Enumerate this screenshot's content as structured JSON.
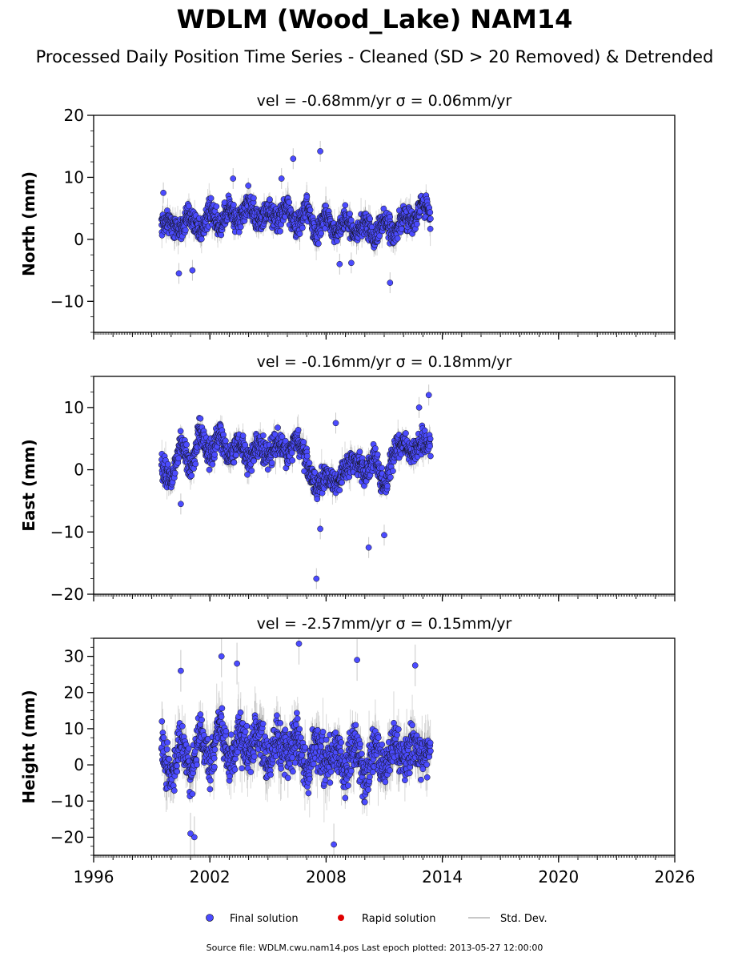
{
  "title": "WDLM (Wood_Lake) NAM14",
  "subtitle": "Processed Daily Position Time Series - Cleaned (SD > 20 Removed) & Detrended",
  "legend": {
    "final": "Final solution",
    "rapid": "Rapid solution",
    "std": "Std. Dev."
  },
  "footer": "Source file: WDLM.cwu.nam14.pos  Last epoch plotted: 2013-05-27 12:00:00",
  "colors": {
    "final": "#4b4bff",
    "rapid": "#e00000",
    "std": "#c8c8c8"
  },
  "chart_data": [
    {
      "type": "scatter",
      "title": "vel = -0.68mm/yr   σ = 0.06mm/yr",
      "ylabel": "North (mm)",
      "xlabel": "",
      "xlim": [
        1996,
        2026
      ],
      "ylim": [
        -15,
        20
      ],
      "xticks": [
        1996,
        2002,
        2008,
        2014,
        2020,
        2026
      ],
      "yticks": [
        -10,
        0,
        10,
        20
      ],
      "series": [
        {
          "name": "Final solution",
          "x": [
            1999.5,
            2000.0,
            2000.5,
            2001.0,
            2001.5,
            2002.0,
            2002.5,
            2003.0,
            2003.5,
            2004.0,
            2004.5,
            2005.0,
            2005.5,
            2006.0,
            2006.5,
            2007.0,
            2007.5,
            2008.0,
            2008.5,
            2009.0,
            2009.5,
            2010.0,
            2010.5,
            2011.0,
            2011.5,
            2012.0,
            2012.5,
            2013.0,
            2013.4
          ],
          "y": [
            2.5,
            3.0,
            1.5,
            4.0,
            1.0,
            4.5,
            2.0,
            5.0,
            2.5,
            6.5,
            2.5,
            5.0,
            3.0,
            5.5,
            1.5,
            5.5,
            0.5,
            4.0,
            1.0,
            3.5,
            0.5,
            3.0,
            0.0,
            3.5,
            0.5,
            4.0,
            2.5,
            6.0,
            3.5
          ]
        }
      ],
      "outliers": {
        "x": [
          1999.6,
          2000.4,
          2001.1,
          2003.2,
          2005.7,
          2006.3,
          2007.7,
          2008.7,
          2009.3,
          2011.3
        ],
        "y": [
          7.5,
          -5.5,
          -5.0,
          9.8,
          9.8,
          13.0,
          14.2,
          -4.0,
          -3.8,
          -7.0
        ]
      }
    },
    {
      "type": "scatter",
      "title": "vel = -0.16mm/yr   σ = 0.18mm/yr",
      "ylabel": "East (mm)",
      "xlabel": "",
      "xlim": [
        1996,
        2026
      ],
      "ylim": [
        -20,
        15
      ],
      "xticks": [
        1996,
        2002,
        2008,
        2014,
        2020,
        2026
      ],
      "yticks": [
        -20,
        -10,
        0,
        10
      ],
      "series": [
        {
          "name": "Final solution",
          "x": [
            1999.5,
            2000.0,
            2000.5,
            2001.0,
            2001.5,
            2002.0,
            2002.5,
            2003.0,
            2003.5,
            2004.0,
            2004.5,
            2005.0,
            2005.5,
            2006.0,
            2006.5,
            2007.0,
            2007.5,
            2008.0,
            2008.5,
            2009.0,
            2009.5,
            2010.0,
            2010.5,
            2011.0,
            2011.5,
            2012.0,
            2012.5,
            2013.0,
            2013.4
          ],
          "y": [
            1.0,
            -2.0,
            4.5,
            0.0,
            6.5,
            2.0,
            6.0,
            1.5,
            4.5,
            1.5,
            4.5,
            2.0,
            4.5,
            2.5,
            5.0,
            1.0,
            -3.0,
            -1.0,
            -2.5,
            0.5,
            1.5,
            -0.5,
            2.0,
            -3.0,
            3.0,
            4.0,
            2.5,
            5.0,
            3.5
          ]
        }
      ],
      "outliers": {
        "x": [
          2000.5,
          2007.5,
          2007.7,
          2008.5,
          2010.2,
          2011.0,
          2012.8,
          2013.3
        ],
        "y": [
          -5.5,
          -17.5,
          -9.5,
          7.5,
          -12.5,
          -10.5,
          10.0,
          12.0
        ]
      }
    },
    {
      "type": "scatter",
      "title": "vel = -2.57mm/yr   σ = 0.15mm/yr",
      "ylabel": "Height (mm)",
      "xlabel": "",
      "xlim": [
        1996,
        2026
      ],
      "ylim": [
        -25,
        35
      ],
      "xticks": [
        1996,
        2002,
        2008,
        2014,
        2020,
        2026
      ],
      "yticks": [
        -20,
        -10,
        0,
        10,
        20,
        30
      ],
      "series": [
        {
          "name": "Final solution",
          "x": [
            1999.5,
            2000.0,
            2000.5,
            2001.0,
            2001.5,
            2002.0,
            2002.5,
            2003.0,
            2003.5,
            2004.0,
            2004.5,
            2005.0,
            2005.5,
            2006.0,
            2006.5,
            2007.0,
            2007.5,
            2008.0,
            2008.5,
            2009.0,
            2009.5,
            2010.0,
            2010.5,
            2011.0,
            2011.5,
            2012.0,
            2012.5,
            2013.0,
            2013.4
          ],
          "y": [
            5.0,
            -5.0,
            8.0,
            -3.0,
            10.0,
            0.0,
            12.0,
            0.0,
            8.0,
            2.0,
            10.0,
            0.0,
            8.0,
            2.0,
            9.0,
            -2.0,
            6.0,
            0.0,
            5.0,
            -2.0,
            6.0,
            -4.0,
            5.0,
            -2.0,
            6.0,
            0.0,
            7.0,
            2.0,
            4.0
          ]
        }
      ],
      "outliers": {
        "x": [
          2000.5,
          2001.2,
          2002.6,
          2006.6,
          2008.4,
          2009.6,
          2001.0,
          2003.4,
          2012.6
        ],
        "y": [
          26.0,
          -20.0,
          30.0,
          33.5,
          -22.0,
          29.0,
          -19.0,
          28.0,
          27.5
        ]
      }
    }
  ]
}
